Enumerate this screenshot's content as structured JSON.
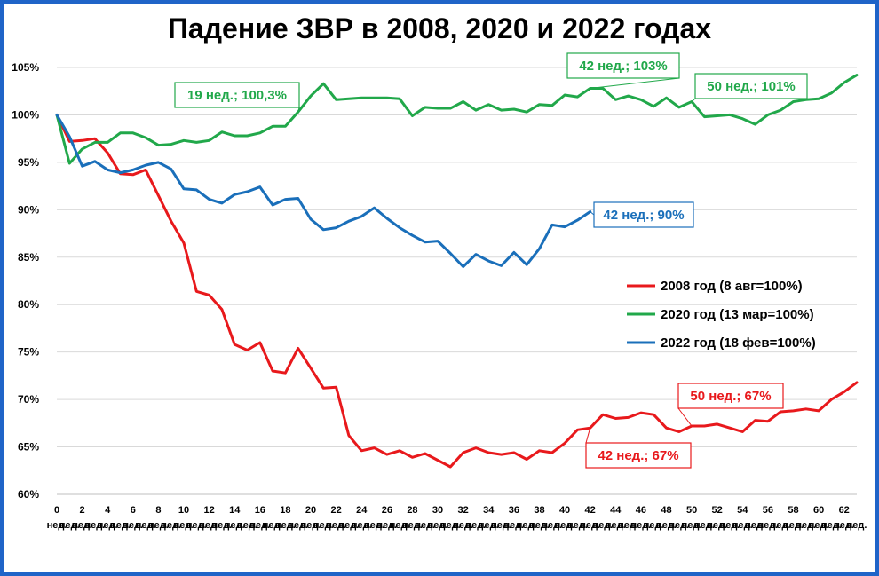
{
  "chart_data": {
    "type": "line",
    "title": "Падение ЗВР в 2008, 2020 и 2022 годах",
    "ylim": [
      60,
      105
    ],
    "xlim": [
      0,
      63
    ],
    "y_ticks": [
      "60%",
      "65%",
      "70%",
      "75%",
      "80%",
      "85%",
      "90%",
      "95%",
      "100%",
      "105%"
    ],
    "x_ticks": [
      "0",
      "2",
      "4",
      "6",
      "8",
      "10",
      "12",
      "14",
      "16",
      "18",
      "20",
      "22",
      "24",
      "26",
      "28",
      "30",
      "32",
      "34",
      "36",
      "38",
      "40",
      "42",
      "44",
      "46",
      "48",
      "50",
      "52",
      "54",
      "56",
      "58",
      "60",
      "62"
    ],
    "x_unit": "нед.",
    "grid": "horizontal",
    "legend_position": "right-middle",
    "series": [
      {
        "name": "2008 год (8 авг=100%)",
        "color": "#e8191c",
        "values": [
          100,
          97.2,
          97.3,
          97.5,
          96,
          93.8,
          93.7,
          94.2,
          91.5,
          88.8,
          86.5,
          81.4,
          81,
          79.5,
          75.8,
          75.2,
          76,
          73,
          72.8,
          75.4,
          73.3,
          71.2,
          71.3,
          66.2,
          64.6,
          64.9,
          64.2,
          64.6,
          63.9,
          64.3,
          63.6,
          62.9,
          64.4,
          64.9,
          64.4,
          64.2,
          64.4,
          63.7,
          64.6,
          64.4,
          65.4,
          66.8,
          67,
          68.4,
          68,
          68.1,
          68.6,
          68.4,
          67,
          66.6,
          67.2,
          67.2,
          67.4,
          67,
          66.6,
          67.8,
          67.7,
          68.7,
          68.8,
          69,
          68.8,
          70,
          70.8,
          71.8
        ]
      },
      {
        "name": "2020 год (13 мар=100%)",
        "color": "#21a84a",
        "values": [
          100,
          94.9,
          96.4,
          97.1,
          97.1,
          98.1,
          98.1,
          97.6,
          96.8,
          96.9,
          97.3,
          97.1,
          97.3,
          98.2,
          97.8,
          97.8,
          98.1,
          98.8,
          98.8,
          100.3,
          102,
          103.3,
          101.6,
          101.7,
          101.8,
          101.8,
          101.8,
          101.7,
          99.9,
          100.8,
          100.7,
          100.7,
          101.4,
          100.5,
          101.1,
          100.5,
          100.6,
          100.3,
          101.1,
          101,
          102.1,
          101.9,
          102.8,
          102.8,
          101.6,
          102,
          101.6,
          100.9,
          101.8,
          100.8,
          101.4,
          99.8,
          99.9,
          100,
          99.6,
          99,
          100,
          100.5,
          101.4,
          101.6,
          101.7,
          102.3,
          103.4,
          104.2
        ]
      },
      {
        "name": "2022 год (18 фев=100%)",
        "color": "#1a6fba",
        "values": [
          100,
          97.7,
          94.6,
          95.1,
          94.2,
          93.9,
          94.2,
          94.7,
          95,
          94.3,
          92.2,
          92.1,
          91.1,
          90.7,
          91.6,
          91.9,
          92.4,
          90.5,
          91.1,
          91.2,
          89,
          87.9,
          88.1,
          88.8,
          89.3,
          90.2,
          89.1,
          88.1,
          87.3,
          86.6,
          86.7,
          85.4,
          84,
          85.3,
          84.6,
          84.1,
          85.5,
          84.2,
          85.9,
          88.4,
          88.2,
          88.9,
          89.8
        ]
      }
    ],
    "annotations": [
      {
        "text": "19 нед.; 100,3%",
        "series": 1,
        "x": 19,
        "y": 100.3,
        "color": "#21a84a"
      },
      {
        "text": "42 нед.; 103%",
        "series": 1,
        "x": 42,
        "y": 102.8,
        "color": "#21a84a"
      },
      {
        "text": "50 нед.; 101%",
        "series": 1,
        "x": 50,
        "y": 101.4,
        "color": "#21a84a"
      },
      {
        "text": "42 нед.; 90%",
        "series": 2,
        "x": 42,
        "y": 89.8,
        "color": "#1a6fba"
      },
      {
        "text": "50 нед.; 67%",
        "series": 0,
        "x": 50,
        "y": 67.2,
        "color": "#e8191c"
      },
      {
        "text": "42 нед.; 67%",
        "series": 0,
        "x": 42,
        "y": 67,
        "color": "#e8191c"
      }
    ]
  }
}
